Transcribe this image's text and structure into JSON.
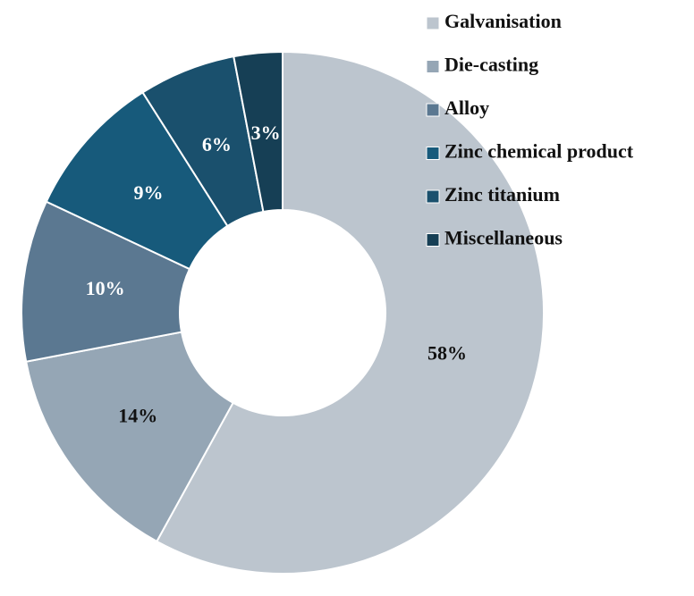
{
  "chart_data": {
    "type": "donut",
    "categories": [
      "Galvanisation",
      "Die-casting",
      "Alloy",
      "Zinc chemical product",
      "Zinc titanium",
      "Miscellaneous"
    ],
    "values": [
      58,
      14,
      10,
      9,
      6,
      3
    ],
    "value_labels": [
      "58%",
      "14%",
      "10%",
      "9%",
      "6%",
      "3%"
    ],
    "colors": [
      "#bcc5ce",
      "#95a6b5",
      "#5b7891",
      "#175a7b",
      "#1a506d",
      "#163f55"
    ],
    "label_colors": [
      "#111111",
      "#111111",
      "#ffffff",
      "#ffffff",
      "#ffffff",
      "#ffffff"
    ],
    "legend": "top-right"
  }
}
